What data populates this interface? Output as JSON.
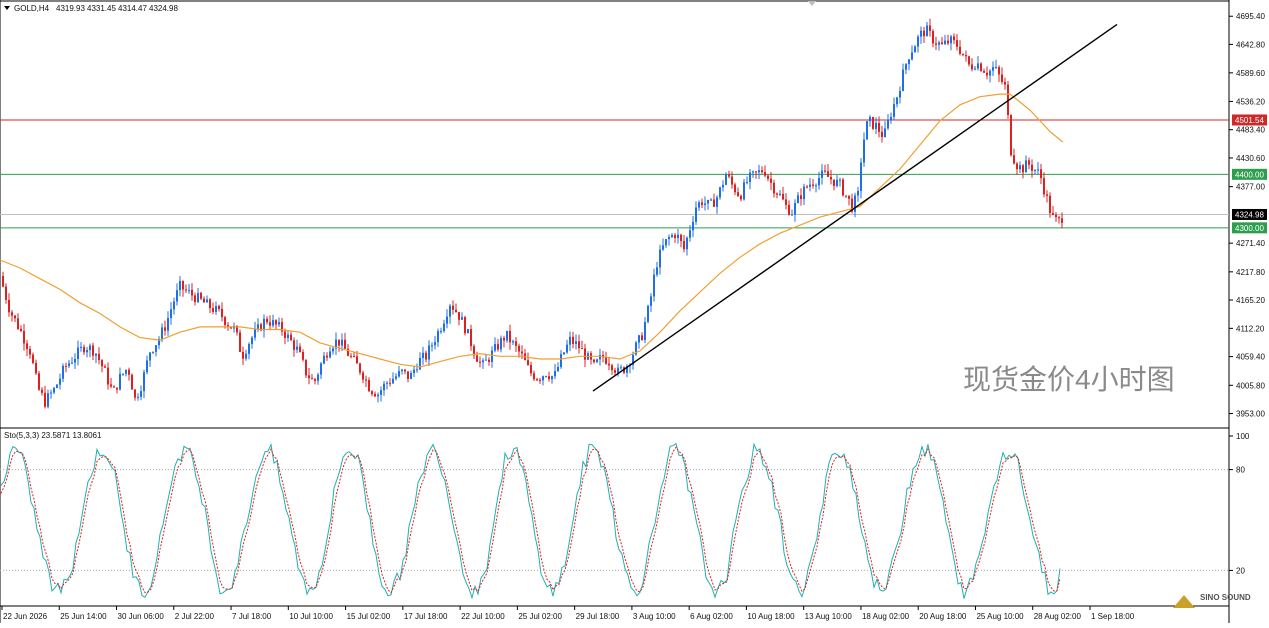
{
  "header": {
    "symbol": "GOLD,H4",
    "open": "4319.93",
    "high": "4331.45",
    "low": "4314.47",
    "close": "4324.98"
  },
  "watermark": "现货金价4小时图",
  "logo": {
    "text": "SINO SOUND"
  },
  "colors": {
    "bull": "#1e6fe8",
    "bear": "#e02020",
    "ma": "#f0a030",
    "resistance": "#cc2a2a",
    "support": "#2e9e4e",
    "trendline": "#000000",
    "stoch_main": "#20b0b0",
    "stoch_signal": "#e02020",
    "price_badge": "#000000"
  },
  "chart_data": [
    {
      "type": "candlestick",
      "title": "GOLD,H4",
      "ylim": [
        3926,
        4722
      ],
      "y_ticks": [
        "4695.40",
        "4642.80",
        "4589.60",
        "4536.20",
        "4483.40",
        "4430.60",
        "4377.00",
        "4324.98",
        "4271.40",
        "4217.80",
        "4165.20",
        "4112.20",
        "4059.40",
        "4005.80",
        "3953.00"
      ],
      "x_ticks": [
        "22 Jun 2026",
        "25 Jun 14:00",
        "30 Jun 06:00",
        "2 Jul 22:00",
        "7 Jul 18:00",
        "10 Jul 10:00",
        "15 Jul 02:00",
        "17 Jul 18:00",
        "22 Jul 10:00",
        "25 Jul 02:00",
        "29 Jul 18:00",
        "3 Aug 10:00",
        "6 Aug 02:00",
        "10 Aug 18:00",
        "13 Aug 10:00",
        "18 Aug 02:00",
        "20 Aug 18:00",
        "25 Aug 10:00",
        "28 Aug 02:00",
        "1 Sep 18:00"
      ],
      "price_path": [
        [
          0,
          4210
        ],
        [
          10,
          4145
        ],
        [
          20,
          4110
        ],
        [
          30,
          4070
        ],
        [
          38,
          4000
        ],
        [
          45,
          3975
        ],
        [
          55,
          4000
        ],
        [
          65,
          4040
        ],
        [
          75,
          4060
        ],
        [
          85,
          4080
        ],
        [
          95,
          4070
        ],
        [
          105,
          4030
        ],
        [
          113,
          3990
        ],
        [
          120,
          4020
        ],
        [
          128,
          4040
        ],
        [
          135,
          3980
        ],
        [
          142,
          4010
        ],
        [
          150,
          4070
        ],
        [
          158,
          4090
        ],
        [
          166,
          4120
        ],
        [
          173,
          4160
        ],
        [
          180,
          4190
        ],
        [
          188,
          4180
        ],
        [
          196,
          4170
        ],
        [
          204,
          4160
        ],
        [
          212,
          4150
        ],
        [
          220,
          4140
        ],
        [
          228,
          4120
        ],
        [
          235,
          4110
        ],
        [
          242,
          4060
        ],
        [
          250,
          4090
        ],
        [
          258,
          4110
        ],
        [
          266,
          4130
        ],
        [
          274,
          4120
        ],
        [
          282,
          4110
        ],
        [
          290,
          4090
        ],
        [
          298,
          4070
        ],
        [
          306,
          4030
        ],
        [
          314,
          4010
        ],
        [
          322,
          4050
        ],
        [
          330,
          4080
        ],
        [
          338,
          4090
        ],
        [
          346,
          4070
        ],
        [
          354,
          4050
        ],
        [
          362,
          4030
        ],
        [
          370,
          4000
        ],
        [
          378,
          3990
        ],
        [
          386,
          4010
        ],
        [
          394,
          4020
        ],
        [
          402,
          4030
        ],
        [
          410,
          4020
        ],
        [
          418,
          4050
        ],
        [
          426,
          4060
        ],
        [
          434,
          4090
        ],
        [
          442,
          4120
        ],
        [
          450,
          4160
        ],
        [
          458,
          4140
        ],
        [
          466,
          4110
        ],
        [
          474,
          4070
        ],
        [
          482,
          4040
        ],
        [
          490,
          4060
        ],
        [
          498,
          4080
        ],
        [
          506,
          4100
        ],
        [
          514,
          4080
        ],
        [
          522,
          4060
        ],
        [
          530,
          4030
        ],
        [
          538,
          4020
        ],
        [
          546,
          4030
        ],
        [
          554,
          4020
        ],
        [
          562,
          4060
        ],
        [
          570,
          4090
        ],
        [
          578,
          4080
        ],
        [
          586,
          4060
        ],
        [
          594,
          4040
        ],
        [
          602,
          4060
        ],
        [
          610,
          4050
        ],
        [
          618,
          4030
        ],
        [
          626,
          4040
        ],
        [
          634,
          4070
        ],
        [
          642,
          4100
        ],
        [
          650,
          4160
        ],
        [
          656,
          4230
        ],
        [
          662,
          4260
        ],
        [
          668,
          4280
        ],
        [
          676,
          4290
        ],
        [
          684,
          4260
        ],
        [
          690,
          4300
        ],
        [
          696,
          4340
        ],
        [
          702,
          4350
        ],
        [
          710,
          4340
        ],
        [
          718,
          4360
        ],
        [
          726,
          4400
        ],
        [
          732,
          4380
        ],
        [
          740,
          4360
        ],
        [
          748,
          4390
        ],
        [
          756,
          4400
        ],
        [
          764,
          4410
        ],
        [
          772,
          4380
        ],
        [
          780,
          4360
        ],
        [
          786,
          4340
        ],
        [
          792,
          4330
        ],
        [
          800,
          4360
        ],
        [
          808,
          4380
        ],
        [
          816,
          4390
        ],
        [
          824,
          4400
        ],
        [
          832,
          4390
        ],
        [
          840,
          4380
        ],
        [
          846,
          4360
        ],
        [
          852,
          4340
        ],
        [
          858,
          4360
        ],
        [
          862,
          4450
        ],
        [
          868,
          4500
        ],
        [
          876,
          4490
        ],
        [
          884,
          4470
        ],
        [
          890,
          4510
        ],
        [
          896,
          4540
        ],
        [
          902,
          4580
        ],
        [
          908,
          4620
        ],
        [
          914,
          4640
        ],
        [
          920,
          4660
        ],
        [
          926,
          4670
        ],
        [
          934,
          4650
        ],
        [
          942,
          4640
        ],
        [
          950,
          4650
        ],
        [
          958,
          4640
        ],
        [
          964,
          4620
        ],
        [
          970,
          4600
        ],
        [
          976,
          4610
        ],
        [
          982,
          4600
        ],
        [
          988,
          4590
        ],
        [
          994,
          4600
        ],
        [
          1000,
          4580
        ],
        [
          1006,
          4560
        ],
        [
          1010,
          4450
        ],
        [
          1016,
          4420
        ],
        [
          1022,
          4410
        ],
        [
          1028,
          4420
        ],
        [
          1034,
          4410
        ],
        [
          1040,
          4400
        ],
        [
          1046,
          4360
        ],
        [
          1052,
          4320
        ],
        [
          1058,
          4310
        ],
        [
          1064,
          4325
        ]
      ],
      "ma_path": [
        [
          0,
          4240
        ],
        [
          20,
          4225
        ],
        [
          40,
          4205
        ],
        [
          60,
          4185
        ],
        [
          80,
          4160
        ],
        [
          100,
          4140
        ],
        [
          120,
          4115
        ],
        [
          140,
          4095
        ],
        [
          160,
          4090
        ],
        [
          180,
          4105
        ],
        [
          200,
          4115
        ],
        [
          220,
          4115
        ],
        [
          240,
          4115
        ],
        [
          260,
          4110
        ],
        [
          280,
          4110
        ],
        [
          300,
          4105
        ],
        [
          320,
          4085
        ],
        [
          340,
          4075
        ],
        [
          360,
          4065
        ],
        [
          380,
          4055
        ],
        [
          400,
          4045
        ],
        [
          420,
          4040
        ],
        [
          440,
          4050
        ],
        [
          460,
          4060
        ],
        [
          480,
          4065
        ],
        [
          500,
          4060
        ],
        [
          520,
          4060
        ],
        [
          540,
          4055
        ],
        [
          560,
          4055
        ],
        [
          580,
          4060
        ],
        [
          600,
          4060
        ],
        [
          620,
          4055
        ],
        [
          640,
          4070
        ],
        [
          660,
          4105
        ],
        [
          680,
          4145
        ],
        [
          700,
          4180
        ],
        [
          720,
          4215
        ],
        [
          740,
          4245
        ],
        [
          760,
          4270
        ],
        [
          780,
          4290
        ],
        [
          800,
          4305
        ],
        [
          820,
          4320
        ],
        [
          840,
          4330
        ],
        [
          860,
          4340
        ],
        [
          880,
          4375
        ],
        [
          900,
          4410
        ],
        [
          920,
          4455
        ],
        [
          940,
          4500
        ],
        [
          960,
          4530
        ],
        [
          980,
          4545
        ],
        [
          1000,
          4550
        ],
        [
          1010,
          4550
        ],
        [
          1020,
          4535
        ],
        [
          1030,
          4520
        ],
        [
          1040,
          4500
        ],
        [
          1050,
          4480
        ],
        [
          1063,
          4460
        ]
      ],
      "levels": [
        {
          "name": "resistance",
          "value": "4501.54"
        },
        {
          "name": "support-upper",
          "value": "4400.00"
        },
        {
          "name": "current",
          "value": "4324.98"
        },
        {
          "name": "support-lower",
          "value": "4300.00"
        }
      ],
      "trendline": {
        "from": [
          "29 Jul 18:00",
          3995
        ],
        "to": [
          "1 Sep 18:00",
          4680
        ]
      }
    },
    {
      "type": "line",
      "title": "Sto(5,3,3) 23.5871 13.8061",
      "indicator": "Stochastic",
      "params": "5,3,3",
      "main": "23.5871",
      "signal": "13.8061",
      "ylim": [
        0,
        100
      ],
      "y_ticks": [
        "100",
        "80",
        "20"
      ],
      "levels": [
        80,
        20
      ]
    }
  ]
}
